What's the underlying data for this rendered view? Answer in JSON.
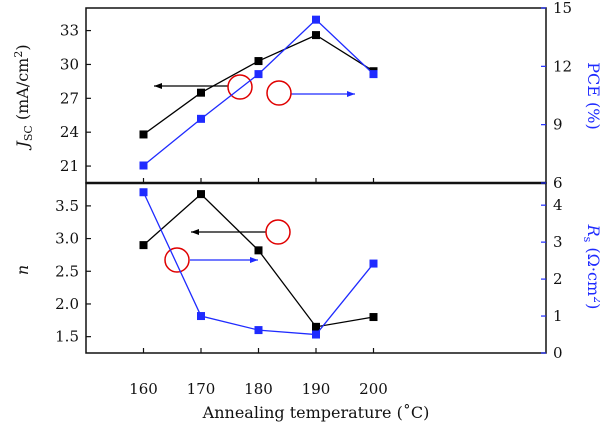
{
  "chart_data": [
    {
      "type": "line",
      "x_values": [
        160,
        170,
        180,
        190,
        200
      ],
      "x_ticks": [
        "160",
        "170",
        "180",
        "190",
        "200"
      ],
      "xlabel": "Annealing temperature (˚C)",
      "left_axis": {
        "label": "J_SC (mA/cm²)",
        "ticks": [
          "21",
          "24",
          "27",
          "30",
          "33"
        ],
        "ylim": [
          19.5,
          35.0
        ],
        "color": "#111111"
      },
      "right_axis": {
        "label": "PCE (%)",
        "ticks": [
          "6",
          "9",
          "12",
          "15"
        ],
        "ylim": [
          6.0,
          15.0
        ],
        "color": "#1f2bff"
      },
      "series": [
        {
          "axis": "left",
          "values": [
            23.8,
            27.5,
            30.3,
            32.6,
            29.4
          ],
          "color": "#000000"
        },
        {
          "axis": "right",
          "values": [
            6.9,
            9.3,
            11.6,
            14.4,
            11.6
          ],
          "color": "#1f2bff"
        }
      ],
      "annotations": {
        "left_arrow": "points to J_SC axis",
        "right_arrow": "points to PCE axis"
      }
    },
    {
      "type": "line",
      "x_values": [
        160,
        170,
        180,
        190,
        200
      ],
      "x_ticks": [
        "160",
        "170",
        "180",
        "190",
        "200"
      ],
      "xlabel": "Annealing temperature (˚C)",
      "left_axis": {
        "label": "n",
        "ticks": [
          "1.5",
          "2.0",
          "2.5",
          "3.0",
          "3.5"
        ],
        "ylim": [
          1.25,
          3.85
        ],
        "color": "#111111"
      },
      "right_axis": {
        "label": "R_s (Ω·cm²)",
        "ticks": [
          "0",
          "1",
          "2",
          "3",
          "4"
        ],
        "ylim": [
          0.0,
          4.6
        ],
        "color": "#1f2bff"
      },
      "series": [
        {
          "axis": "left",
          "values": [
            2.9,
            3.68,
            2.82,
            1.65,
            1.8
          ],
          "color": "#000000"
        },
        {
          "axis": "right",
          "values": [
            4.35,
            1.0,
            0.62,
            0.5,
            2.42
          ],
          "color": "#1f2bff"
        }
      ]
    }
  ],
  "texts": {
    "top_left_label_main": "J",
    "top_left_label_sub": "SC",
    "top_left_label_rest": " (mA/cm",
    "top_left_label_sup": "2",
    "top_left_label_end": ")",
    "top_right_label": "PCE (%)",
    "bottom_left_label": "n",
    "bottom_right_label_main": "R",
    "bottom_right_label_sub": "s",
    "bottom_right_label_rest": " (Ω·cm",
    "bottom_right_label_sup": "2",
    "bottom_right_label_end": ")",
    "xlabel": "Annealing temperature (˚C)"
  },
  "colors": {
    "black": "#000000",
    "blue": "#1f2bff",
    "red": "#e00000",
    "axis": "#111111"
  }
}
